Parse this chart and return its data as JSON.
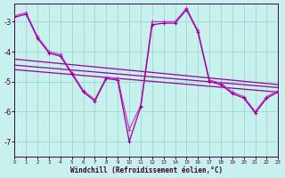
{
  "background_color": "#c8f0ec",
  "grid_color": "#a0ddd8",
  "line_color1": "#990099",
  "line_color2": "#cc33cc",
  "x_label": "Windchill (Refroidissement éolien,°C)",
  "xlim": [
    0,
    23
  ],
  "ylim": [
    -7.5,
    -2.4
  ],
  "yticks": [
    -7,
    -6,
    -5,
    -4,
    -3
  ],
  "xticks": [
    0,
    1,
    2,
    3,
    4,
    5,
    6,
    7,
    8,
    9,
    10,
    11,
    12,
    13,
    14,
    15,
    16,
    17,
    18,
    19,
    20,
    21,
    22,
    23
  ],
  "series1_x": [
    0,
    1,
    2,
    3,
    4,
    5,
    6,
    7,
    8,
    9,
    10,
    11,
    12,
    13,
    14,
    15,
    16,
    17,
    18,
    19,
    20,
    21,
    22,
    23
  ],
  "series1_y": [
    -2.8,
    -2.7,
    -3.5,
    -4.0,
    -4.1,
    -4.7,
    -5.3,
    -5.6,
    -4.85,
    -4.9,
    -6.6,
    -5.8,
    -3.0,
    -3.0,
    -3.0,
    -2.55,
    -3.3,
    -4.95,
    -5.05,
    -5.35,
    -5.5,
    -6.0,
    -5.5,
    -5.3
  ],
  "series2_x": [
    0,
    1,
    2,
    3,
    4,
    5,
    6,
    7,
    8,
    9,
    10,
    11,
    12,
    13,
    14,
    15,
    16,
    17,
    18,
    19,
    20,
    21,
    22,
    23
  ],
  "series2_y": [
    -2.85,
    -2.75,
    -3.55,
    -4.05,
    -4.15,
    -4.75,
    -5.35,
    -5.65,
    -4.9,
    -4.95,
    -7.0,
    -5.85,
    -3.1,
    -3.05,
    -3.05,
    -2.6,
    -3.35,
    -5.0,
    -5.1,
    -5.4,
    -5.55,
    -6.05,
    -5.55,
    -5.35
  ],
  "reg_lines": [
    [
      -4.25,
      -5.1
    ],
    [
      -4.45,
      -5.2
    ],
    [
      -4.6,
      -5.35
    ]
  ]
}
